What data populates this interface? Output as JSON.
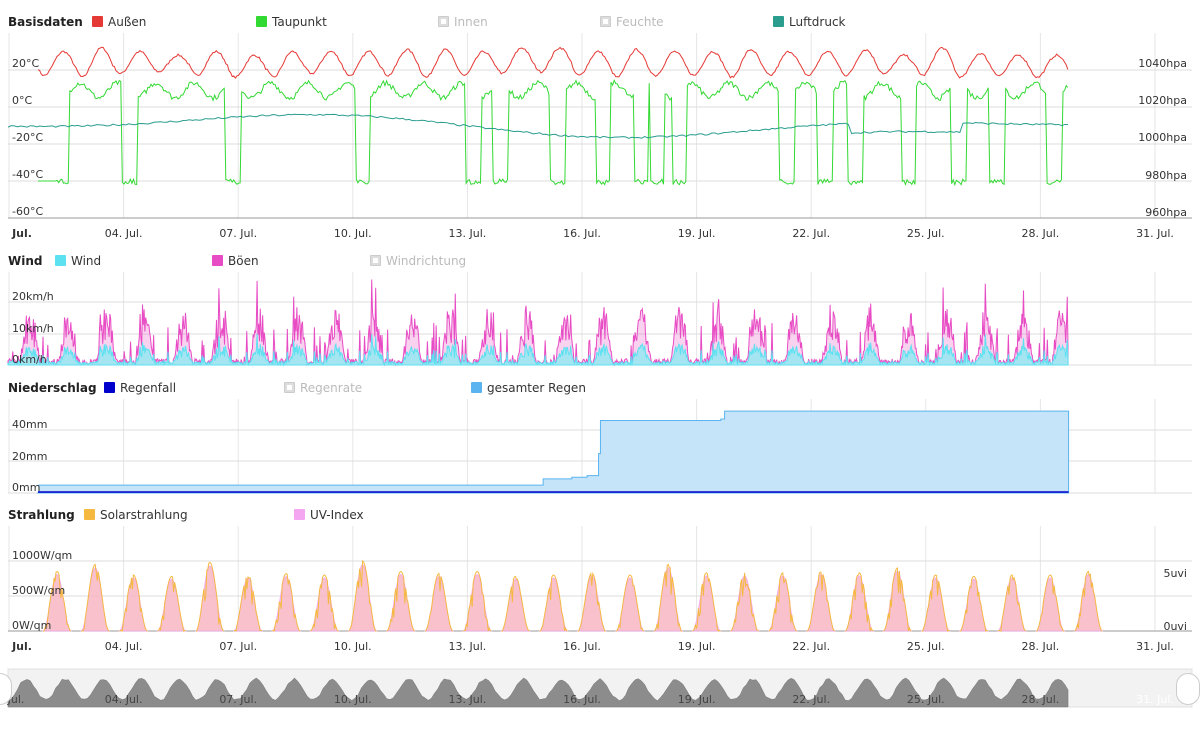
{
  "panels": [
    {
      "id": "basisdaten",
      "title": "Basisdaten",
      "legend": [
        {
          "label": "Außen",
          "color": "#e53935",
          "enabled": true
        },
        {
          "label": "Taupunkt",
          "color": "#33d933",
          "enabled": true
        },
        {
          "label": "Innen",
          "color": "#cccccc",
          "enabled": false
        },
        {
          "label": "Feuchte",
          "color": "#cccccc",
          "enabled": false
        },
        {
          "label": "Luftdruck",
          "color": "#2a9d8f",
          "enabled": true
        }
      ],
      "y_left_ticks": [
        "20°C",
        "0°C",
        "-20°C",
        "-40°C",
        "-60°C"
      ],
      "y_right_ticks": [
        "1040hpa",
        "1020hpa",
        "1000hpa",
        "980hpa",
        "960hpa"
      ]
    },
    {
      "id": "wind",
      "title": "Wind",
      "legend": [
        {
          "label": "Wind",
          "color": "#5ce1f0",
          "enabled": true
        },
        {
          "label": "Böen",
          "color": "#e84cc4",
          "enabled": true
        },
        {
          "label": "Windrichtung",
          "color": "#cccccc",
          "enabled": false
        }
      ],
      "y_left_ticks": [
        "20km/h",
        "10km/h",
        "0km/h"
      ]
    },
    {
      "id": "niederschlag",
      "title": "Niederschlag",
      "legend": [
        {
          "label": "Regenfall",
          "color": "#0000cc",
          "enabled": true
        },
        {
          "label": "Regenrate",
          "color": "#cccccc",
          "enabled": false
        },
        {
          "label": "gesamter Regen",
          "color": "#5ab4ef",
          "enabled": true
        }
      ],
      "y_left_ticks": [
        "40mm",
        "20mm",
        "0mm"
      ]
    },
    {
      "id": "strahlung",
      "title": "Strahlung",
      "legend": [
        {
          "label": "Solarstrahlung",
          "color": "#f5b942",
          "enabled": true
        },
        {
          "label": "UV-Index",
          "color": "#f5a6f0",
          "enabled": true
        }
      ],
      "y_left_ticks": [
        "1000W/qm",
        "500W/qm",
        "0W/qm"
      ],
      "y_right_ticks": [
        "5uvi",
        "0uvi"
      ]
    }
  ],
  "x_axis": {
    "labels": [
      "Jul.",
      "04. Jul.",
      "07. Jul.",
      "10. Jul.",
      "13. Jul.",
      "16. Jul.",
      "19. Jul.",
      "22. Jul.",
      "25. Jul.",
      "28. Jul.",
      "31. Jul."
    ]
  },
  "navigator": {
    "labels": [
      "Jul.",
      "04. Jul.",
      "07. Jul.",
      "10. Jul.",
      "13. Jul.",
      "16. Jul.",
      "19. Jul.",
      "22. Jul.",
      "25. Jul.",
      "28. Jul.",
      "31. Jul."
    ]
  },
  "chart_data": [
    {
      "type": "line",
      "title": "Basisdaten",
      "x_range": [
        "2024-07-01",
        "2024-07-31"
      ],
      "series": [
        {
          "name": "Außen",
          "unit": "°C",
          "daily_min": [
            17,
            16,
            18,
            19,
            17,
            16,
            16,
            18,
            17,
            17,
            16,
            17,
            18,
            19,
            17,
            16,
            17,
            17,
            16,
            17,
            17,
            17,
            18,
            17,
            16,
            17,
            16,
            17
          ],
          "daily_max": [
            30,
            32,
            30,
            28,
            30,
            28,
            30,
            30,
            30,
            31,
            31,
            30,
            32,
            32,
            30,
            31,
            30,
            30,
            31,
            30,
            30,
            31,
            28,
            32,
            29,
            28,
            28,
            33
          ]
        },
        {
          "name": "Taupunkt",
          "unit": "°C",
          "typical_range": [
            -42,
            14
          ],
          "dropouts_to": -40
        },
        {
          "name": "Luftdruck",
          "unit": "hPa",
          "range": [
            1003,
            1020
          ]
        }
      ],
      "ylim_left": [
        -60,
        30
      ],
      "ylim_right": [
        960,
        1050
      ]
    },
    {
      "type": "area",
      "title": "Wind",
      "series": [
        {
          "name": "Wind",
          "unit": "km/h",
          "max": 8
        },
        {
          "name": "Böen",
          "unit": "km/h",
          "max": 25
        }
      ],
      "ylim": [
        0,
        25
      ]
    },
    {
      "type": "area",
      "title": "Niederschlag",
      "series": [
        {
          "name": "gesamter Regen",
          "unit": "mm",
          "steps": [
            [
              1.0,
              0
            ],
            [
              1.05,
              5
            ],
            [
              14.2,
              5
            ],
            [
              14.25,
              9
            ],
            [
              15.0,
              10
            ],
            [
              15.4,
              11
            ],
            [
              15.7,
              25
            ],
            [
              15.75,
              46
            ],
            [
              18.9,
              47
            ],
            [
              19.0,
              52
            ],
            [
              28.0,
              52
            ]
          ]
        },
        {
          "name": "Regenfall",
          "unit": "mm",
          "max": 1
        }
      ],
      "ylim": [
        0,
        55
      ]
    },
    {
      "type": "area",
      "title": "Strahlung",
      "series": [
        {
          "name": "Solarstrahlung",
          "unit": "W/qm",
          "daily_peak": [
            850,
            950,
            800,
            780,
            980,
            800,
            820,
            800,
            1000,
            850,
            820,
            850,
            780,
            800,
            830,
            800,
            950,
            830,
            830,
            830,
            850,
            830,
            900,
            800,
            780,
            800,
            800,
            850
          ]
        },
        {
          "name": "UV-Index",
          "unit": "uvi",
          "daily_peak": [
            6.5,
            7,
            6.5,
            6,
            7,
            6.5,
            6.5,
            6.5,
            7,
            6.5,
            6.5,
            6.5,
            6,
            6.5,
            6.5,
            6.5,
            7,
            6.5,
            6.5,
            6.5,
            6.5,
            6.5,
            7,
            6.5,
            6,
            6.5,
            6.5,
            6.5
          ]
        }
      ],
      "ylim_left": [
        0,
        1200
      ],
      "ylim_right": [
        0,
        6
      ]
    }
  ]
}
